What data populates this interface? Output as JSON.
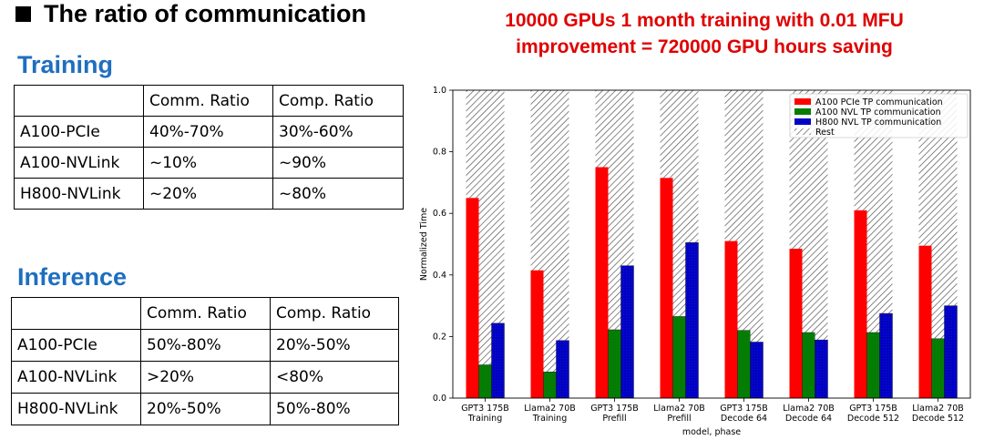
{
  "slide": {
    "title": "The ratio of communication",
    "headline_line1": "10000 GPUs 1 month training with 0.01 MFU",
    "headline_line2": "improvement = 720000 GPU hours saving"
  },
  "training": {
    "title": "Training",
    "header": [
      "",
      "Comm. Ratio",
      "Comp. Ratio"
    ],
    "rows": [
      [
        "A100-PCIe",
        "40%-70%",
        "30%-60%"
      ],
      [
        "A100-NVLink",
        "~10%",
        "~90%"
      ],
      [
        "H800-NVLink",
        "~20%",
        "~80%"
      ]
    ]
  },
  "inference": {
    "title": "Inference",
    "header": [
      "",
      "Comm. Ratio",
      "Comp. Ratio"
    ],
    "rows": [
      [
        "A100-PCIe",
        "50%-80%",
        "20%-50%"
      ],
      [
        "A100-NVLink",
        ">20%",
        "<80%"
      ],
      [
        "H800-NVLink",
        "20%-50%",
        "50%-80%"
      ]
    ]
  },
  "chart_data": {
    "type": "bar",
    "stacked_rest": true,
    "categories": [
      [
        "GPT3 175B",
        "Training"
      ],
      [
        "Llama2 70B",
        "Training"
      ],
      [
        "GPT3 175B",
        "Prefill"
      ],
      [
        "Llama2 70B",
        "Prefill"
      ],
      [
        "GPT3 175B",
        "Decode 64"
      ],
      [
        "Llama2 70B",
        "Decode 64"
      ],
      [
        "GPT3 175B",
        "Decode 512"
      ],
      [
        "Llama2 70B",
        "Decode 512"
      ]
    ],
    "series": [
      {
        "name": "A100 PCIe TP communication",
        "color": "#ff0000",
        "values": [
          0.65,
          0.415,
          0.75,
          0.715,
          0.51,
          0.485,
          0.61,
          0.495
        ]
      },
      {
        "name": "A100 NVL TP communication",
        "color": "#008000",
        "values": [
          0.108,
          0.085,
          0.222,
          0.265,
          0.22,
          0.213,
          0.213,
          0.193
        ]
      },
      {
        "name": "H800 NVL TP communication",
        "color": "#0000cc",
        "values": [
          0.243,
          0.187,
          0.43,
          0.505,
          0.182,
          0.189,
          0.275,
          0.3
        ]
      }
    ],
    "rest_label": "Rest",
    "ylim": [
      0,
      1.0
    ],
    "yticks": [
      "0.0",
      "0.2",
      "0.4",
      "0.6",
      "0.8",
      "1.0"
    ],
    "xlabel": "model, phase",
    "ylabel": "Normalized Time",
    "legend_position": "top-right"
  }
}
